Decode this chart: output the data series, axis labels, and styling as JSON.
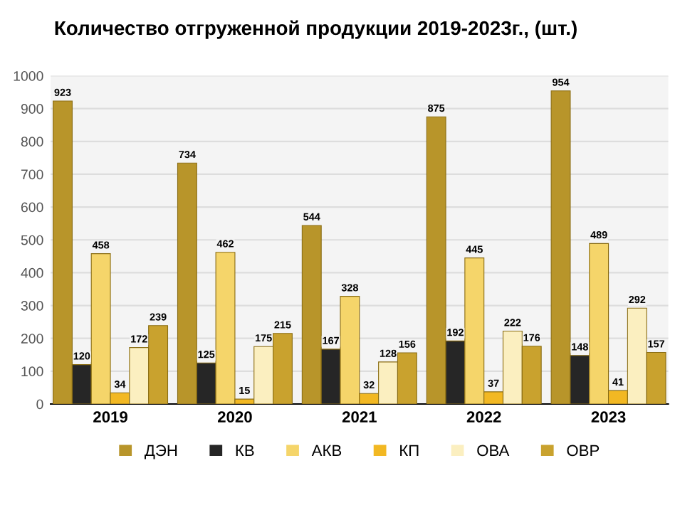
{
  "chart_data": {
    "type": "bar",
    "title": "Количество отгруженной продукции 2019-2023г., (шт.)",
    "categories": [
      "2019",
      "2020",
      "2021",
      "2022",
      "2023"
    ],
    "series": [
      {
        "name": "ДЭН",
        "color": "#b8952a",
        "values": [
          923,
          734,
          544,
          875,
          954
        ]
      },
      {
        "name": "КВ",
        "color": "#262626",
        "values": [
          120,
          125,
          167,
          192,
          148
        ]
      },
      {
        "name": "АКВ",
        "color": "#f5d56a",
        "values": [
          458,
          462,
          328,
          445,
          489
        ]
      },
      {
        "name": "КП",
        "color": "#f2b823",
        "values": [
          34,
          15,
          32,
          37,
          41
        ]
      },
      {
        "name": "ОВА",
        "color": "#fbefc0",
        "values": [
          172,
          175,
          128,
          222,
          292
        ]
      },
      {
        "name": "ОВР",
        "color": "#c9a22e",
        "values": [
          239,
          215,
          156,
          176,
          157
        ]
      }
    ],
    "ylim": [
      0,
      1000
    ],
    "yticks": [
      0,
      100,
      200,
      300,
      400,
      500,
      600,
      700,
      800,
      900,
      1000
    ],
    "grid": "y",
    "legend": "bottom",
    "data_labels": true
  }
}
